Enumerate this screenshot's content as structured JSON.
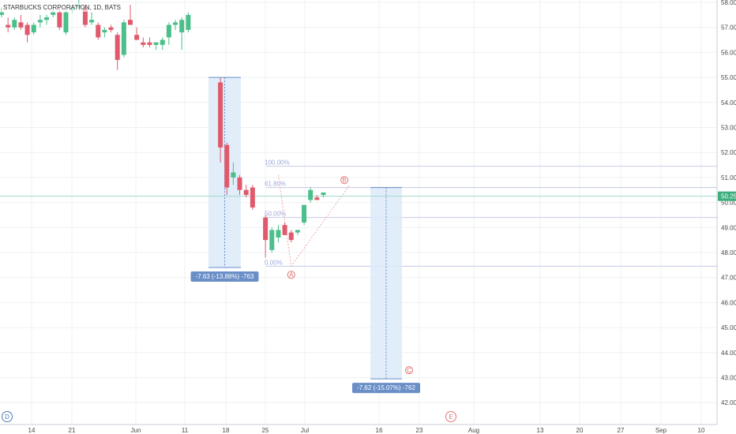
{
  "chart_data": {
    "type": "candlestick",
    "title": "STARBUCKS CORPORATION, 1D, BATS",
    "ylim": [
      41.6,
      58.1
    ],
    "y_ticks": [
      "58.00",
      "57.00",
      "56.00",
      "55.00",
      "54.00",
      "53.00",
      "52.00",
      "51.00",
      "50.00",
      "49.00",
      "48.00",
      "47.00",
      "46.00",
      "45.00",
      "44.00",
      "43.00",
      "42.00"
    ],
    "x_ticks": [
      "14",
      "21",
      "Jun",
      "11",
      "18",
      "25",
      "Jul",
      "16",
      "23",
      "Aug",
      "13",
      "20",
      "27",
      "Sep",
      "10"
    ],
    "last_price": "50.25",
    "candles": [
      {
        "o": 57.5,
        "h": 57.8,
        "l": 57.4,
        "c": 57.6
      },
      {
        "o": 57.1,
        "h": 57.4,
        "l": 56.8,
        "c": 57.0
      },
      {
        "o": 57.0,
        "h": 57.4,
        "l": 56.9,
        "c": 57.3
      },
      {
        "o": 57.2,
        "h": 57.5,
        "l": 56.9,
        "c": 57.0
      },
      {
        "o": 57.1,
        "h": 57.2,
        "l": 56.4,
        "c": 56.7
      },
      {
        "o": 56.8,
        "h": 57.2,
        "l": 56.7,
        "c": 57.1
      },
      {
        "o": 57.2,
        "h": 57.5,
        "l": 57.0,
        "c": 57.3
      },
      {
        "o": 57.3,
        "h": 57.5,
        "l": 57.1,
        "c": 57.4
      },
      {
        "o": 57.5,
        "h": 57.7,
        "l": 57.4,
        "c": 57.6
      },
      {
        "o": 57.6,
        "h": 57.8,
        "l": 56.9,
        "c": 57.0
      },
      {
        "o": 56.8,
        "h": 57.7,
        "l": 56.7,
        "c": 57.6
      },
      {
        "o": 57.7,
        "h": 57.9,
        "l": 57.6,
        "c": 57.8
      },
      {
        "o": 57.8,
        "h": 58.1,
        "l": 57.7,
        "c": 57.9
      },
      {
        "o": 57.8,
        "h": 57.9,
        "l": 57.0,
        "c": 57.1
      },
      {
        "o": 57.2,
        "h": 57.6,
        "l": 57.1,
        "c": 57.3
      },
      {
        "o": 57.1,
        "h": 57.2,
        "l": 56.5,
        "c": 56.6
      },
      {
        "o": 56.8,
        "h": 57.0,
        "l": 56.6,
        "c": 56.9
      },
      {
        "o": 57.0,
        "h": 57.1,
        "l": 56.8,
        "c": 56.9
      },
      {
        "o": 56.7,
        "h": 56.8,
        "l": 55.3,
        "c": 55.7
      },
      {
        "o": 55.9,
        "h": 57.3,
        "l": 55.8,
        "c": 57.2
      },
      {
        "o": 57.3,
        "h": 57.9,
        "l": 57.1,
        "c": 57.1
      },
      {
        "o": 56.7,
        "h": 57.0,
        "l": 56.5,
        "c": 56.5
      },
      {
        "o": 56.4,
        "h": 56.6,
        "l": 56.2,
        "c": 56.3
      },
      {
        "o": 56.4,
        "h": 56.6,
        "l": 56.2,
        "c": 56.3
      },
      {
        "o": 56.3,
        "h": 56.4,
        "l": 56.1,
        "c": 56.4
      },
      {
        "o": 56.3,
        "h": 56.6,
        "l": 56.1,
        "c": 56.5
      },
      {
        "o": 56.6,
        "h": 57.2,
        "l": 56.3,
        "c": 57.1
      },
      {
        "o": 57.1,
        "h": 57.3,
        "l": 56.9,
        "c": 57.2
      },
      {
        "o": 56.8,
        "h": 57.4,
        "l": 56.1,
        "c": 57.3
      },
      {
        "o": 56.9,
        "h": 57.6,
        "l": 56.8,
        "c": 57.5
      },
      null,
      null,
      null,
      null,
      {
        "o": 54.8,
        "h": 55.0,
        "l": 51.6,
        "c": 52.2
      },
      {
        "o": 52.3,
        "h": 52.4,
        "l": 50.3,
        "c": 50.6
      },
      {
        "o": 51.0,
        "h": 51.6,
        "l": 50.7,
        "c": 51.2
      },
      {
        "o": 51.0,
        "h": 51.1,
        "l": 50.3,
        "c": 50.5
      },
      {
        "o": 50.5,
        "h": 50.7,
        "l": 50.2,
        "c": 50.3
      },
      {
        "o": 50.6,
        "h": 50.7,
        "l": 49.7,
        "c": 49.8
      },
      null,
      {
        "o": 49.4,
        "h": 49.5,
        "l": 47.8,
        "c": 48.5
      },
      {
        "o": 48.1,
        "h": 49.0,
        "l": 48.0,
        "c": 48.9
      },
      {
        "o": 48.6,
        "h": 49.1,
        "l": 48.4,
        "c": 48.9
      },
      {
        "o": 49.1,
        "h": 49.2,
        "l": 48.7,
        "c": 48.7
      },
      {
        "o": 48.8,
        "h": 48.9,
        "l": 48.4,
        "c": 48.5
      },
      {
        "o": 48.8,
        "h": 48.9,
        "l": 48.7,
        "c": 48.9
      },
      {
        "o": 49.2,
        "h": 49.9,
        "l": 49.1,
        "c": 49.9
      },
      {
        "o": 50.1,
        "h": 50.6,
        "l": 50.0,
        "c": 50.5
      },
      {
        "o": 50.2,
        "h": 50.3,
        "l": 50.1,
        "c": 50.1
      },
      {
        "o": 50.3,
        "h": 50.4,
        "l": 50.2,
        "c": 50.4
      }
    ],
    "fibonacci": {
      "levels": [
        {
          "label": "100.00%",
          "price": 51.45
        },
        {
          "label": "61.80%",
          "price": 50.6
        },
        {
          "label": "50.00%",
          "price": 49.4
        },
        {
          "label": "0.00%",
          "price": 47.45
        }
      ]
    },
    "measures": [
      {
        "label": "-7.63 (-13.88%) -763",
        "from": 55.0,
        "to": 47.4
      },
      {
        "label": "-7.62 (-15.07%) -762",
        "from": 50.6,
        "to": 42.95
      }
    ],
    "points": [
      {
        "label": "A",
        "price": 47.3
      },
      {
        "label": "B",
        "price": 50.8
      },
      {
        "label": "C",
        "price": 43.2
      },
      {
        "label": "D",
        "price": 42.0
      },
      {
        "label": "E",
        "price": 42.0
      }
    ]
  }
}
